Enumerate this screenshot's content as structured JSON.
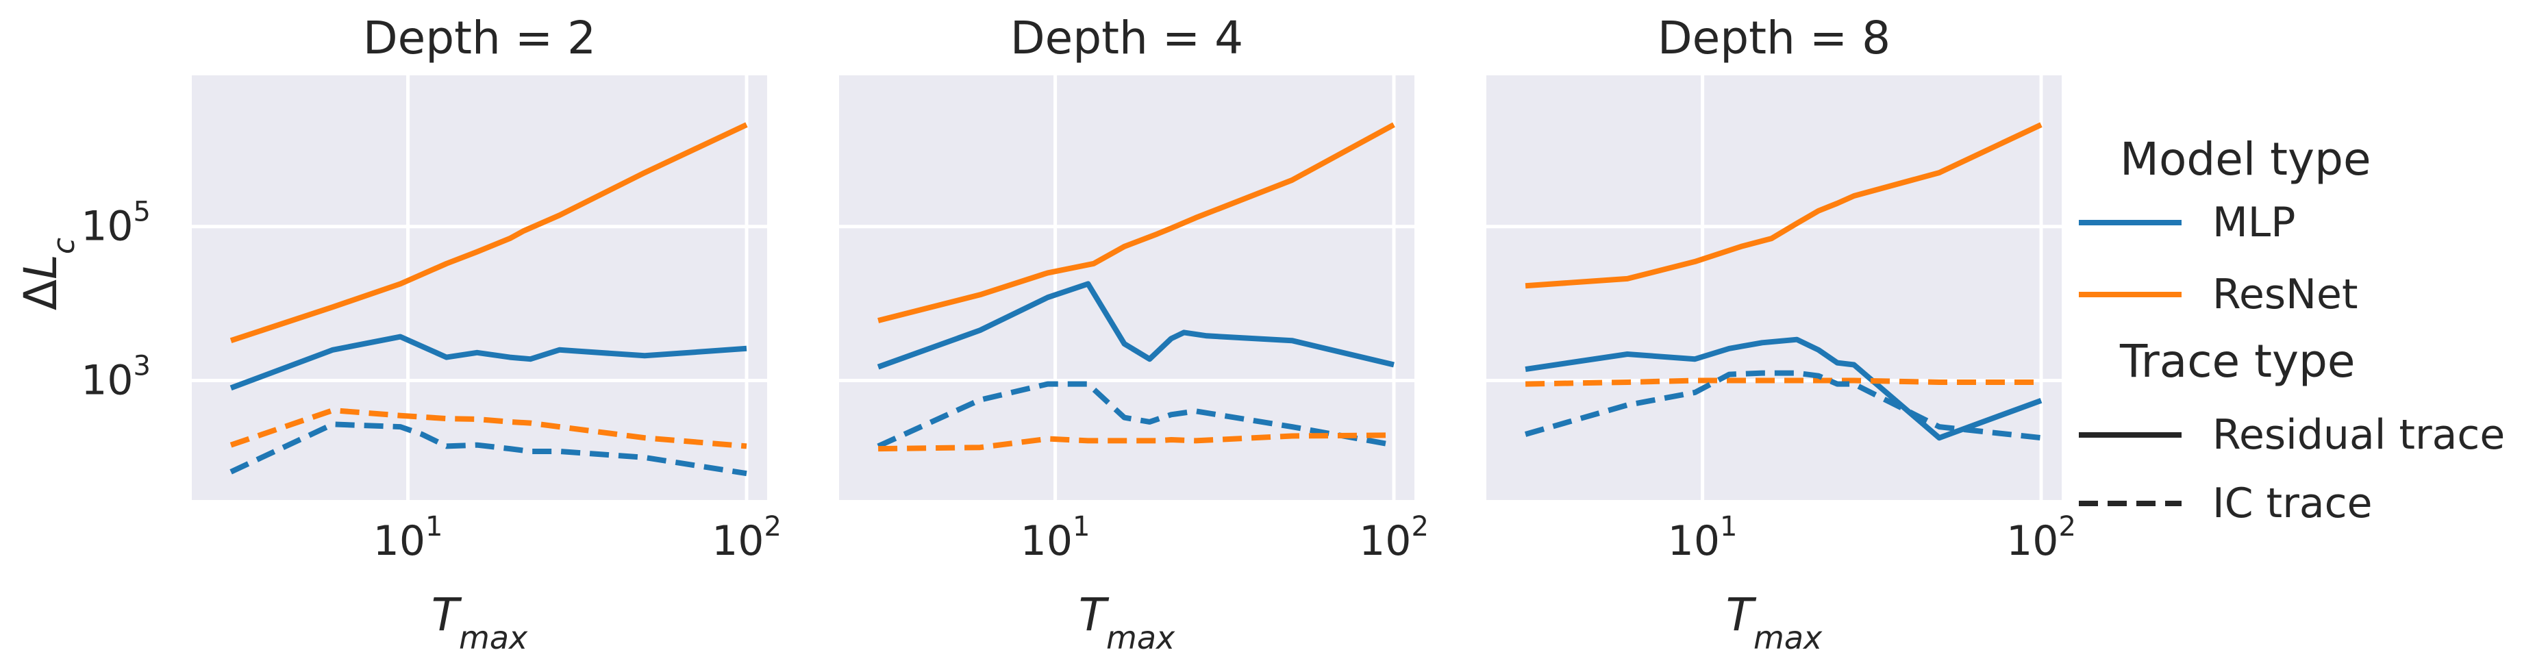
{
  "chart_data": {
    "type": "line",
    "x_scale": "log",
    "y_scale": "log",
    "ylabel": "ΔL_c",
    "xlabel": "T_max",
    "xlim": [
      2.3,
      115
    ],
    "ylim": [
      28,
      9200000
    ],
    "x_ticks": [
      {
        "base": "10",
        "exp": "1",
        "value": 10
      },
      {
        "base": "10",
        "exp": "2",
        "value": 100
      }
    ],
    "y_ticks": [
      {
        "base": "10",
        "exp": "3",
        "value": 1000
      },
      {
        "base": "10",
        "exp": "5",
        "value": 100000
      }
    ],
    "grid": true,
    "colors": {
      "MLP": "#1f77b4",
      "ResNet": "#ff7f0e"
    },
    "legend": {
      "position": "right",
      "model_title": "Model type",
      "model_items": [
        {
          "name": "MLP",
          "color": "#1f77b4"
        },
        {
          "name": "ResNet",
          "color": "#ff7f0e"
        }
      ],
      "trace_title": "Trace type",
      "trace_items": [
        {
          "name": "Residual trace",
          "style": "solid"
        },
        {
          "name": "IC trace",
          "style": "dashed"
        }
      ]
    },
    "panels": [
      {
        "title": "Depth = 2",
        "series": [
          {
            "model": "ResNet",
            "trace": "Residual trace",
            "x": [
              3,
              6,
              9.5,
              13,
              16,
              20,
              22,
              28,
              50,
              100
            ],
            "y": [
              3300,
              9000,
              18000,
              33000,
              47000,
              70000,
              88000,
              140000,
              500000,
              2100000
            ]
          },
          {
            "model": "MLP",
            "trace": "Residual trace",
            "x": [
              3,
              6,
              9.5,
              13,
              16,
              20,
              23,
              28,
              50,
              100
            ],
            "y": [
              800,
              2500,
              3700,
              2000,
              2300,
              2000,
              1900,
              2500,
              2100,
              2600
            ]
          },
          {
            "model": "ResNet",
            "trace": "IC trace",
            "x": [
              3,
              6,
              9.5,
              13,
              16,
              20,
              23,
              28,
              50,
              100
            ],
            "y": [
              145,
              410,
              350,
              320,
              315,
              290,
              280,
              250,
              180,
              140
            ]
          },
          {
            "model": "MLP",
            "trace": "IC trace",
            "x": [
              3,
              6,
              9.5,
              11,
              13,
              16,
              20,
              23,
              28,
              50,
              100
            ],
            "y": [
              65,
              270,
              250,
              200,
              140,
              145,
              130,
              120,
              120,
              100,
              62
            ]
          }
        ]
      },
      {
        "title": "Depth = 4",
        "series": [
          {
            "model": "ResNet",
            "trace": "Residual trace",
            "x": [
              3,
              6,
              9.5,
              13,
              16,
              20,
              22,
              26,
              50,
              100
            ],
            "y": [
              6000,
              13000,
              25000,
              33000,
              55000,
              80000,
              95000,
              130000,
              400000,
              2100000
            ]
          },
          {
            "model": "MLP",
            "trace": "Residual trace",
            "x": [
              3,
              6,
              9.5,
              12.5,
              16,
              19,
              22,
              24,
              28,
              50,
              100
            ],
            "y": [
              1500,
              4500,
              12000,
              18000,
              3000,
              1900,
              3500,
              4200,
              3800,
              3300,
              1600
            ]
          },
          {
            "model": "MLP",
            "trace": "IC trace",
            "x": [
              3,
              6,
              9.5,
              12.5,
              16,
              19,
              22,
              26,
              50,
              100
            ],
            "y": [
              140,
              560,
              900,
              900,
              330,
              290,
              360,
              400,
              250,
              145
            ]
          },
          {
            "model": "ResNet",
            "trace": "IC trace",
            "x": [
              3,
              6,
              9.5,
              12.5,
              16,
              20,
              22,
              26,
              50,
              100
            ],
            "y": [
              130,
              135,
              175,
              165,
              165,
              165,
              170,
              165,
              190,
              195
            ]
          }
        ]
      },
      {
        "title": "Depth = 8",
        "series": [
          {
            "model": "ResNet",
            "trace": "Residual trace",
            "x": [
              3,
              6,
              9.5,
              13,
              16,
              19,
              22,
              25,
              28,
              50,
              100
            ],
            "y": [
              17000,
              21000,
              35000,
              55000,
              70000,
              110000,
              160000,
              200000,
              250000,
              500000,
              2100000
            ]
          },
          {
            "model": "MLP",
            "trace": "Residual trace",
            "x": [
              3,
              6,
              9.5,
              12,
              15,
              19,
              22,
              25,
              28,
              50,
              100
            ],
            "y": [
              1400,
              2200,
              1900,
              2600,
              3100,
              3400,
              2500,
              1700,
              1600,
              180,
              550
            ]
          },
          {
            "model": "ResNet",
            "trace": "IC trace",
            "x": [
              3,
              6,
              9.5,
              13,
              16,
              20,
              23,
              28,
              50,
              100
            ],
            "y": [
              900,
              950,
              1000,
              1000,
              1000,
              1000,
              1000,
              1000,
              950,
              950
            ]
          },
          {
            "model": "MLP",
            "trace": "IC trace",
            "x": [
              3,
              6,
              9.5,
              12,
              15,
              19,
              22,
              25,
              28,
              50,
              100
            ],
            "y": [
              200,
              480,
              700,
              1200,
              1250,
              1250,
              1150,
              900,
              900,
              250,
              180
            ]
          }
        ]
      }
    ]
  }
}
